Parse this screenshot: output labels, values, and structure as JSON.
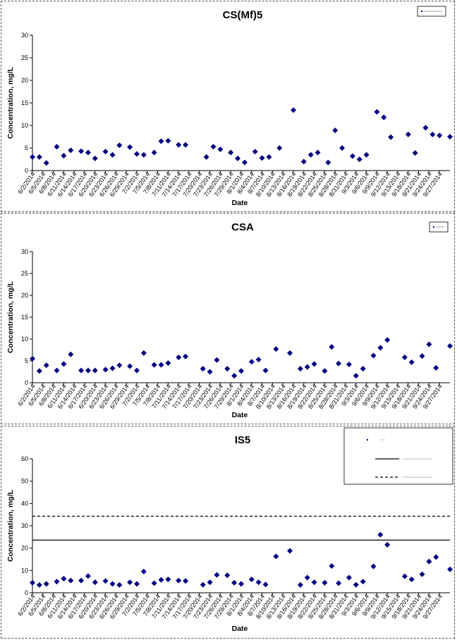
{
  "chart_data": [
    {
      "type": "scatter",
      "title": "CS(Mf)5",
      "xlabel": "Date",
      "ylabel": "Concentration, mg/L",
      "ylim": [
        0,
        30
      ],
      "yticks": [
        "0",
        "5",
        "10",
        "15",
        "20",
        "25",
        "30"
      ],
      "xlim": [
        "2014-06-02",
        "2014-09-30"
      ],
      "xtick_labels": [
        "6/2/2014",
        "6/5/2014",
        "6/8/2014",
        "6/11/2014",
        "6/14/2014",
        "6/17/2014",
        "6/20/2014",
        "6/23/2014",
        "6/26/2014",
        "6/29/2014",
        "7/2/2014",
        "7/5/2014",
        "7/8/2014",
        "7/11/2014",
        "7/14/2014",
        "7/17/2014",
        "7/20/2014",
        "7/23/2014",
        "7/26/2014",
        "7/29/2014",
        "8/1/2014",
        "8/4/2014",
        "8/7/2014",
        "8/10/2014",
        "8/13/2014",
        "8/16/2014",
        "8/19/2014",
        "8/22/2014",
        "8/25/2014",
        "8/28/2014",
        "8/31/2014",
        "9/3/2014",
        "9/6/2014",
        "9/9/2014",
        "9/12/2014",
        "9/15/2014",
        "9/18/2014",
        "9/21/2014",
        "9/24/2014",
        "9/27/2014"
      ],
      "marker_color": "#00007F",
      "legend_position": "top-right",
      "points": [
        {
          "x": "2014-06-02",
          "y": 3.0
        },
        {
          "x": "2014-06-04",
          "y": 3.0
        },
        {
          "x": "2014-06-06",
          "y": 1.7
        },
        {
          "x": "2014-06-09",
          "y": 5.3
        },
        {
          "x": "2014-06-11",
          "y": 3.3
        },
        {
          "x": "2014-06-13",
          "y": 4.5
        },
        {
          "x": "2014-06-16",
          "y": 4.3
        },
        {
          "x": "2014-06-18",
          "y": 4.0
        },
        {
          "x": "2014-06-20",
          "y": 2.7
        },
        {
          "x": "2014-06-23",
          "y": 4.2
        },
        {
          "x": "2014-06-25",
          "y": 3.5
        },
        {
          "x": "2014-06-27",
          "y": 5.6
        },
        {
          "x": "2014-06-30",
          "y": 5.2
        },
        {
          "x": "2014-07-02",
          "y": 3.7
        },
        {
          "x": "2014-07-04",
          "y": 3.5
        },
        {
          "x": "2014-07-07",
          "y": 4.0
        },
        {
          "x": "2014-07-09",
          "y": 6.5
        },
        {
          "x": "2014-07-11",
          "y": 6.6
        },
        {
          "x": "2014-07-14",
          "y": 5.7
        },
        {
          "x": "2014-07-16",
          "y": 5.7
        },
        {
          "x": "2014-07-22",
          "y": 3.0
        },
        {
          "x": "2014-07-24",
          "y": 5.3
        },
        {
          "x": "2014-07-26",
          "y": 4.7
        },
        {
          "x": "2014-07-29",
          "y": 4.0
        },
        {
          "x": "2014-07-31",
          "y": 2.7
        },
        {
          "x": "2014-08-02",
          "y": 1.8
        },
        {
          "x": "2014-08-05",
          "y": 4.2
        },
        {
          "x": "2014-08-07",
          "y": 2.8
        },
        {
          "x": "2014-08-09",
          "y": 3.0
        },
        {
          "x": "2014-08-12",
          "y": 5.0
        },
        {
          "x": "2014-08-16",
          "y": 13.4
        },
        {
          "x": "2014-08-19",
          "y": 2.0
        },
        {
          "x": "2014-08-21",
          "y": 3.5
        },
        {
          "x": "2014-08-23",
          "y": 4.0
        },
        {
          "x": "2014-08-26",
          "y": 1.8
        },
        {
          "x": "2014-08-28",
          "y": 8.9
        },
        {
          "x": "2014-08-30",
          "y": 5.0
        },
        {
          "x": "2014-09-02",
          "y": 3.2
        },
        {
          "x": "2014-09-04",
          "y": 2.5
        },
        {
          "x": "2014-09-06",
          "y": 3.5
        },
        {
          "x": "2014-09-09",
          "y": 13.0
        },
        {
          "x": "2014-09-11",
          "y": 11.8
        },
        {
          "x": "2014-09-13",
          "y": 7.4
        },
        {
          "x": "2014-09-18",
          "y": 8.0
        },
        {
          "x": "2014-09-20",
          "y": 3.9
        },
        {
          "x": "2014-09-23",
          "y": 9.5
        },
        {
          "x": "2014-09-25",
          "y": 8.0
        },
        {
          "x": "2014-09-27",
          "y": 7.8
        },
        {
          "x": "2014-09-30",
          "y": 7.5
        }
      ]
    },
    {
      "type": "scatter",
      "title": "CSA",
      "xlabel": "Date",
      "ylabel": "Concentration, mg/L",
      "ylim": [
        0,
        30
      ],
      "yticks": [
        "0",
        "5",
        "10",
        "15",
        "20",
        "25",
        "30"
      ],
      "xlim": [
        "2014-06-02",
        "2014-09-30"
      ],
      "xtick_labels": [
        "6/2/2014",
        "6/5/2014",
        "6/8/2014",
        "6/11/2014",
        "6/14/2014",
        "6/17/2014",
        "6/20/2014",
        "6/23/2014",
        "6/26/2014",
        "6/29/2014",
        "7/2/2014",
        "7/5/2014",
        "7/8/2014",
        "7/11/2014",
        "7/14/2014",
        "7/17/2014",
        "7/20/2014",
        "7/23/2014",
        "7/26/2014",
        "7/29/2014",
        "8/1/2014",
        "8/4/2014",
        "8/7/2014",
        "8/10/2014",
        "8/13/2014",
        "8/16/2014",
        "8/19/2014",
        "8/22/2014",
        "8/25/2014",
        "8/28/2014",
        "8/31/2014",
        "9/3/2014",
        "9/6/2014",
        "9/9/2014",
        "9/12/2014",
        "9/15/2014",
        "9/18/2014",
        "9/21/2014",
        "9/24/2014",
        "9/27/2014"
      ],
      "marker_color": "#00007F",
      "legend_position": "top-right",
      "points": [
        {
          "x": "2014-06-02",
          "y": 5.5
        },
        {
          "x": "2014-06-04",
          "y": 2.7
        },
        {
          "x": "2014-06-06",
          "y": 4.0
        },
        {
          "x": "2014-06-09",
          "y": 2.8
        },
        {
          "x": "2014-06-11",
          "y": 4.3
        },
        {
          "x": "2014-06-13",
          "y": 6.5
        },
        {
          "x": "2014-06-16",
          "y": 2.8
        },
        {
          "x": "2014-06-18",
          "y": 2.8
        },
        {
          "x": "2014-06-20",
          "y": 2.8
        },
        {
          "x": "2014-06-23",
          "y": 3.0
        },
        {
          "x": "2014-06-25",
          "y": 3.3
        },
        {
          "x": "2014-06-27",
          "y": 4.0
        },
        {
          "x": "2014-06-30",
          "y": 3.8
        },
        {
          "x": "2014-07-02",
          "y": 2.8
        },
        {
          "x": "2014-07-04",
          "y": 6.8
        },
        {
          "x": "2014-07-07",
          "y": 4.1
        },
        {
          "x": "2014-07-09",
          "y": 4.1
        },
        {
          "x": "2014-07-11",
          "y": 4.5
        },
        {
          "x": "2014-07-14",
          "y": 5.8
        },
        {
          "x": "2014-07-16",
          "y": 6.0
        },
        {
          "x": "2014-07-21",
          "y": 3.2
        },
        {
          "x": "2014-07-23",
          "y": 2.5
        },
        {
          "x": "2014-07-25",
          "y": 5.2
        },
        {
          "x": "2014-07-28",
          "y": 3.2
        },
        {
          "x": "2014-07-30",
          "y": 1.6
        },
        {
          "x": "2014-08-01",
          "y": 2.7
        },
        {
          "x": "2014-08-04",
          "y": 4.8
        },
        {
          "x": "2014-08-06",
          "y": 5.3
        },
        {
          "x": "2014-08-08",
          "y": 2.8
        },
        {
          "x": "2014-08-11",
          "y": 7.7
        },
        {
          "x": "2014-08-15",
          "y": 6.8
        },
        {
          "x": "2014-08-18",
          "y": 3.2
        },
        {
          "x": "2014-08-20",
          "y": 3.6
        },
        {
          "x": "2014-08-22",
          "y": 4.3
        },
        {
          "x": "2014-08-25",
          "y": 2.7
        },
        {
          "x": "2014-08-27",
          "y": 8.2
        },
        {
          "x": "2014-08-29",
          "y": 4.4
        },
        {
          "x": "2014-09-01",
          "y": 4.2
        },
        {
          "x": "2014-09-03",
          "y": 1.6
        },
        {
          "x": "2014-09-05",
          "y": 3.2
        },
        {
          "x": "2014-09-08",
          "y": 6.2
        },
        {
          "x": "2014-09-10",
          "y": 8.0
        },
        {
          "x": "2014-09-12",
          "y": 9.8
        },
        {
          "x": "2014-09-17",
          "y": 5.8
        },
        {
          "x": "2014-09-19",
          "y": 4.7
        },
        {
          "x": "2014-09-22",
          "y": 6.1
        },
        {
          "x": "2014-09-24",
          "y": 8.8
        },
        {
          "x": "2014-09-26",
          "y": 3.4
        },
        {
          "x": "2014-09-30",
          "y": 8.4
        }
      ]
    },
    {
      "type": "scatter",
      "title": "IS5",
      "xlabel": "Date",
      "ylabel": "Concentration, mg/L",
      "ylim": [
        0,
        60
      ],
      "yticks": [
        "0",
        "10",
        "20",
        "30",
        "40",
        "50",
        "60"
      ],
      "xlim": [
        "2014-06-02",
        "2014-09-30"
      ],
      "xtick_labels": [
        "6/2/2014",
        "6/5/2014",
        "6/8/2014",
        "6/11/2014",
        "6/14/2014",
        "6/17/2014",
        "6/20/2014",
        "6/23/2014",
        "6/26/2014",
        "6/29/2014",
        "7/2/2014",
        "7/5/2014",
        "7/8/2014",
        "7/11/2014",
        "7/14/2014",
        "7/17/2014",
        "7/20/2014",
        "7/23/2014",
        "7/26/2014",
        "7/29/2014",
        "8/1/2014",
        "8/4/2014",
        "8/7/2014",
        "8/10/2014",
        "8/13/2014",
        "8/16/2014",
        "8/19/2014",
        "8/22/2014",
        "8/25/2014",
        "8/28/2014",
        "8/31/2014",
        "9/3/2014",
        "9/6/2014",
        "9/9/2014",
        "9/12/2014",
        "9/15/2014",
        "9/18/2014",
        "9/21/2014",
        "9/24/2014",
        "9/27/2014"
      ],
      "marker_color": "#00007F",
      "legend_position": "top-right",
      "reference_lines": [
        {
          "y": 23.6,
          "style": "solid"
        },
        {
          "y": 34.3,
          "style": "dashed"
        }
      ],
      "points": [
        {
          "x": "2014-06-02",
          "y": 4.5
        },
        {
          "x": "2014-06-04",
          "y": 3.5
        },
        {
          "x": "2014-06-06",
          "y": 4.0
        },
        {
          "x": "2014-06-09",
          "y": 5.0
        },
        {
          "x": "2014-06-11",
          "y": 6.3
        },
        {
          "x": "2014-06-13",
          "y": 5.5
        },
        {
          "x": "2014-06-16",
          "y": 5.5
        },
        {
          "x": "2014-06-18",
          "y": 7.5
        },
        {
          "x": "2014-06-20",
          "y": 4.7
        },
        {
          "x": "2014-06-23",
          "y": 5.3
        },
        {
          "x": "2014-06-25",
          "y": 4.0
        },
        {
          "x": "2014-06-27",
          "y": 3.5
        },
        {
          "x": "2014-06-30",
          "y": 4.7
        },
        {
          "x": "2014-07-02",
          "y": 4.0
        },
        {
          "x": "2014-07-04",
          "y": 9.5
        },
        {
          "x": "2014-07-07",
          "y": 4.3
        },
        {
          "x": "2014-07-09",
          "y": 5.8
        },
        {
          "x": "2014-07-11",
          "y": 6.0
        },
        {
          "x": "2014-07-14",
          "y": 5.5
        },
        {
          "x": "2014-07-16",
          "y": 5.3
        },
        {
          "x": "2014-07-21",
          "y": 3.6
        },
        {
          "x": "2014-07-23",
          "y": 4.7
        },
        {
          "x": "2014-07-25",
          "y": 8.0
        },
        {
          "x": "2014-07-28",
          "y": 7.8
        },
        {
          "x": "2014-07-30",
          "y": 4.5
        },
        {
          "x": "2014-08-01",
          "y": 4.0
        },
        {
          "x": "2014-08-04",
          "y": 6.0
        },
        {
          "x": "2014-08-06",
          "y": 4.7
        },
        {
          "x": "2014-08-08",
          "y": 3.7
        },
        {
          "x": "2014-08-11",
          "y": 16.3
        },
        {
          "x": "2014-08-15",
          "y": 18.8
        },
        {
          "x": "2014-08-18",
          "y": 3.5
        },
        {
          "x": "2014-08-20",
          "y": 6.8
        },
        {
          "x": "2014-08-22",
          "y": 4.7
        },
        {
          "x": "2014-08-25",
          "y": 4.5
        },
        {
          "x": "2014-08-27",
          "y": 12.0
        },
        {
          "x": "2014-08-29",
          "y": 4.3
        },
        {
          "x": "2014-09-01",
          "y": 6.8
        },
        {
          "x": "2014-09-03",
          "y": 3.6
        },
        {
          "x": "2014-09-05",
          "y": 5.0
        },
        {
          "x": "2014-09-08",
          "y": 11.8
        },
        {
          "x": "2014-09-10",
          "y": 26.0
        },
        {
          "x": "2014-09-12",
          "y": 21.5
        },
        {
          "x": "2014-09-17",
          "y": 7.4
        },
        {
          "x": "2014-09-19",
          "y": 6.0
        },
        {
          "x": "2014-09-22",
          "y": 8.3
        },
        {
          "x": "2014-09-24",
          "y": 14.0
        },
        {
          "x": "2014-09-26",
          "y": 16.0
        },
        {
          "x": "2014-09-30",
          "y": 10.5
        }
      ]
    }
  ]
}
